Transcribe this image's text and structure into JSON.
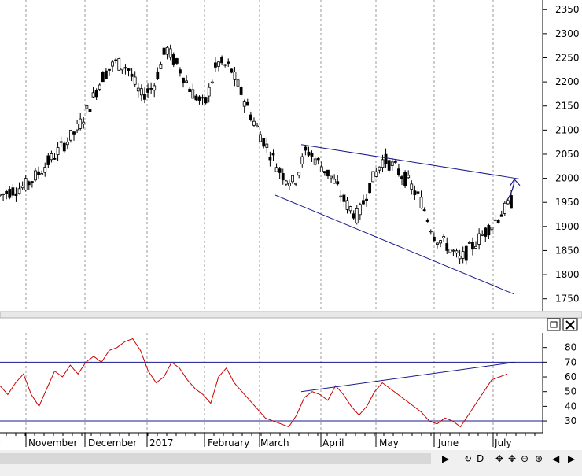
{
  "chart_data": [
    {
      "type": "candlestick",
      "title": "",
      "y_ticks": [
        1750,
        1800,
        1850,
        1900,
        1950,
        2000,
        2050,
        2100,
        2150,
        2200,
        2250,
        2300,
        2350
      ],
      "ylim": [
        1725,
        2370
      ],
      "x_labels": [
        "r",
        "November",
        "December",
        "2017",
        "February",
        "March",
        "April",
        "May",
        "June",
        "July"
      ],
      "grid": true,
      "close_path": [
        [
          "Oct",
          1965
        ],
        [
          "Oct",
          1975
        ],
        [
          "Oct",
          1985
        ],
        [
          "Nov",
          2010
        ],
        [
          "Nov",
          2040
        ],
        [
          "Nov",
          2070
        ],
        [
          "Nov",
          2100
        ],
        [
          "Nov",
          2150
        ],
        [
          "Dec",
          2210
        ],
        [
          "Dec",
          2240
        ],
        [
          "Dec",
          2230
        ],
        [
          "Dec",
          2170
        ],
        [
          "Dec",
          2190
        ],
        [
          "Jan",
          2270
        ],
        [
          "Jan",
          2230
        ],
        [
          "Jan",
          2180
        ],
        [
          "Jan",
          2150
        ],
        [
          "Jan",
          2240
        ],
        [
          "Feb",
          2230
        ],
        [
          "Feb",
          2170
        ],
        [
          "Feb",
          2110
        ],
        [
          "Feb",
          2060
        ],
        [
          "Mar",
          2010
        ],
        [
          "Mar",
          1990
        ],
        [
          "Mar",
          2060
        ],
        [
          "Mar",
          2030
        ],
        [
          "Apr",
          2000
        ],
        [
          "Apr",
          1950
        ],
        [
          "Apr",
          1920
        ],
        [
          "Apr",
          1990
        ],
        [
          "May",
          2040
        ],
        [
          "May",
          2020
        ],
        [
          "May",
          1990
        ],
        [
          "May",
          1950
        ],
        [
          "Jun",
          1880
        ],
        [
          "Jun",
          1860
        ],
        [
          "Jun",
          1830
        ],
        [
          "Jun",
          1860
        ],
        [
          "Jul",
          1890
        ],
        [
          "Jul",
          1920
        ],
        [
          "Jul",
          1950
        ]
      ],
      "annotations": [
        {
          "kind": "trendline",
          "from": [
            2070,
            "Mar"
          ],
          "to": [
            1998,
            "Jul"
          ]
        },
        {
          "kind": "trendline",
          "from": [
            1965,
            "Mar"
          ],
          "to": [
            1760,
            "Jul"
          ]
        },
        {
          "kind": "arrow",
          "target": 1998
        }
      ]
    },
    {
      "type": "line",
      "title": "",
      "y_ticks": [
        30,
        40,
        50,
        60,
        70,
        80
      ],
      "ylim": [
        22,
        90
      ],
      "hlines": [
        30,
        70
      ],
      "color": "#cc0000",
      "values": [
        54,
        48,
        56,
        62,
        48,
        40,
        52,
        64,
        60,
        68,
        62,
        70,
        74,
        70,
        78,
        80,
        84,
        86,
        78,
        64,
        56,
        60,
        70,
        66,
        58,
        52,
        48,
        42,
        60,
        66,
        56,
        50,
        44,
        38,
        32,
        30,
        28,
        26,
        34,
        46,
        50,
        48,
        44,
        54,
        48,
        40,
        34,
        40,
        50,
        56,
        52,
        48,
        44,
        40,
        36,
        30,
        28,
        32,
        30,
        26,
        34,
        42,
        50,
        58,
        60,
        62
      ],
      "annotations": [
        {
          "kind": "trendline",
          "from": [
            50,
            "Mar"
          ],
          "to": [
            70,
            "Jul"
          ]
        }
      ]
    }
  ],
  "toolbar": {
    "buttons": [
      {
        "name": "play-icon",
        "glyph": "▶"
      },
      {
        "name": "refresh-icon",
        "glyph": "↻"
      },
      {
        "name": "d-icon",
        "glyph": "D"
      },
      {
        "name": "pan-icon",
        "glyph": "✥"
      },
      {
        "name": "pan2-icon",
        "glyph": "✥"
      },
      {
        "name": "zoom-out-icon",
        "glyph": "⊖"
      },
      {
        "name": "zoom-in-icon",
        "glyph": "⊕"
      },
      {
        "name": "left-icon",
        "glyph": "◀"
      },
      {
        "name": "right-icon",
        "glyph": "▶"
      }
    ]
  }
}
